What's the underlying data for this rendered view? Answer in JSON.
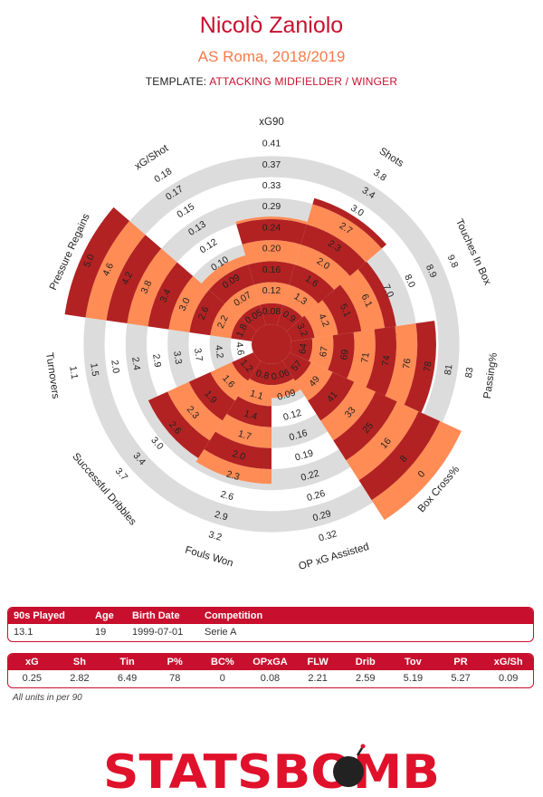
{
  "header": {
    "player": "Nicolò Zaniolo",
    "team_season": "AS Roma, 2018/2019",
    "template_label": "TEMPLATE:",
    "template_value": "ATTACKING MIDFIELDER / WINGER"
  },
  "chart_data": {
    "type": "radar",
    "colors": {
      "ring_dark": "#b22222",
      "ring_light": "#ff8c55",
      "background_ring": "#dcdcdc"
    },
    "axes": [
      {
        "label": "xG90",
        "ticks": [
          "0.08",
          "0.12",
          "0.16",
          "0.20",
          "0.24",
          "0.29",
          "0.33",
          "0.37",
          "0.41"
        ],
        "value": 0.25
      },
      {
        "label": "Shots",
        "ticks": [
          "0.9",
          "1.3",
          "1.6",
          "2.0",
          "2.3",
          "2.7",
          "3.0",
          "3.4",
          "3.8"
        ],
        "value": 2.82
      },
      {
        "label": "Touches In Box",
        "ticks": [
          "3.2",
          "4.2",
          "5.1",
          "6.1",
          "7.0",
          "8.0",
          "8.9",
          "9.8"
        ],
        "value": 6.49
      },
      {
        "label": "Passing%",
        "ticks": [
          "64",
          "67",
          "69",
          "71",
          "74",
          "76",
          "78",
          "81",
          "83"
        ],
        "value": 78
      },
      {
        "label": "Box Cross%",
        "ticks": [
          "57",
          "49",
          "41",
          "33",
          "25",
          "16",
          "8",
          "0"
        ],
        "value": 0
      },
      {
        "label": "OP xG Assisted",
        "ticks": [
          "0.06",
          "0.09",
          "0.12",
          "0.16",
          "0.19",
          "0.22",
          "0.26",
          "0.29",
          "0.32"
        ],
        "value": 0.08
      },
      {
        "label": "Fouls Won",
        "ticks": [
          "0.8",
          "1.1",
          "1.4",
          "1.7",
          "2.0",
          "2.3",
          "2.6",
          "2.9",
          "3.2"
        ],
        "value": 2.21
      },
      {
        "label": "Successful Dribbles",
        "ticks": [
          "1.2",
          "1.6",
          "1.9",
          "2.3",
          "2.6",
          "3.0",
          "3.4",
          "3.7"
        ],
        "value": 2.59
      },
      {
        "label": "Turnovers",
        "ticks": [
          "4.6",
          "4.2",
          "3.7",
          "3.3",
          "2.9",
          "2.4",
          "2.0",
          "1.5",
          "1.1"
        ],
        "value": 5.19
      },
      {
        "label": "Pressure Regains",
        "ticks": [
          "1.8",
          "2.2",
          "2.6",
          "3.0",
          "3.4",
          "3.8",
          "4.2",
          "4.6",
          "5.0"
        ],
        "value": 5.27
      },
      {
        "label": "xG/Shot",
        "ticks": [
          "0.05",
          "0.07",
          "0.09",
          "0.10",
          "0.12",
          "0.13",
          "0.15",
          "0.17",
          "0.18"
        ],
        "value": 0.09
      }
    ]
  },
  "info_table": {
    "headers": [
      "90s Played",
      "Age",
      "Birth Date",
      "Competition"
    ],
    "values": [
      "13.1",
      "19",
      "1999-07-01",
      "Serie A"
    ]
  },
  "stats_table": {
    "headers": [
      "xG",
      "Sh",
      "Tin",
      "P%",
      "BC%",
      "OPxGA",
      "FLW",
      "Drib",
      "Tov",
      "PR",
      "xG/Sh"
    ],
    "values": [
      "0.25",
      "2.82",
      "6.49",
      "78",
      "0",
      "0.08",
      "2.21",
      "2.59",
      "5.19",
      "5.27",
      "0.09"
    ]
  },
  "footnote": "All units in per 90",
  "logo": {
    "text": "STATSBOMB",
    "color": "#e0112b"
  }
}
